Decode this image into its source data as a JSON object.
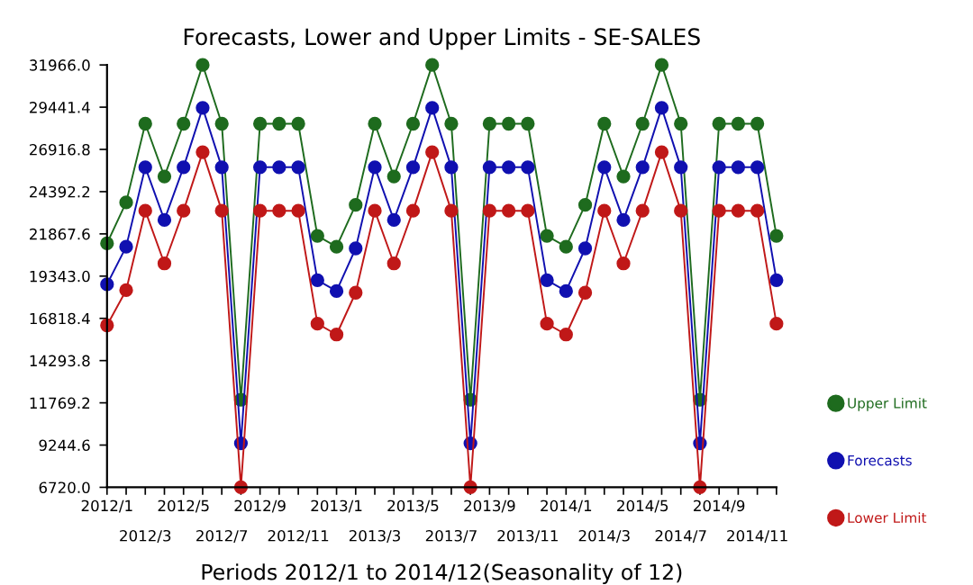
{
  "chart_data": {
    "type": "line",
    "title": "Forecasts, Lower and Upper Limits - SE-SALES",
    "xlabel": "Periods 2012/1 to 2014/12(Seasonality of 12)",
    "categories": [
      "2012/1",
      null,
      "2012/3",
      null,
      "2012/5",
      null,
      "2012/7",
      null,
      "2012/9",
      null,
      "2012/11",
      null,
      "2013/1",
      null,
      "2013/3",
      null,
      "2013/5",
      null,
      "2013/7",
      null,
      "2013/9",
      null,
      "2013/11",
      null,
      "2014/1",
      null,
      "2014/3",
      null,
      "2014/5",
      null,
      "2014/7",
      null,
      "2014/9",
      null,
      "2014/11",
      null
    ],
    "series": [
      {
        "name": "Upper Limit",
        "color": "#1e6b1e",
        "values": [
          21300,
          23750,
          28450,
          25300,
          28450,
          31966,
          28450,
          11950,
          28450,
          28450,
          28450,
          21750,
          21100,
          23600,
          28450,
          25300,
          28450,
          31966,
          28450,
          11950,
          28450,
          28450,
          28450,
          21750,
          21100,
          23600,
          28450,
          25300,
          28450,
          31966,
          28450,
          11950,
          28450,
          28450,
          28450,
          21750
        ]
      },
      {
        "name": "Forecasts",
        "color": "#1010b0",
        "values": [
          18850,
          21100,
          25850,
          22700,
          25850,
          29400,
          25850,
          9350,
          25850,
          25850,
          25850,
          19100,
          18450,
          21000,
          25850,
          22700,
          25850,
          29400,
          25850,
          9350,
          25850,
          25850,
          25850,
          19100,
          18450,
          21000,
          25850,
          22700,
          25850,
          29400,
          25850,
          9350,
          25850,
          25850,
          25850,
          19100
        ]
      },
      {
        "name": "Lower Limit",
        "color": "#c01818",
        "values": [
          16400,
          18500,
          23250,
          20100,
          23250,
          26750,
          23250,
          6720,
          23250,
          23250,
          23250,
          16500,
          15850,
          18350,
          23250,
          20100,
          23250,
          26750,
          23250,
          6720,
          23250,
          23250,
          23250,
          16500,
          15850,
          18350,
          23250,
          20100,
          23250,
          26750,
          23250,
          6720,
          23250,
          23250,
          23250,
          16500
        ]
      }
    ],
    "ylim": [
      6720,
      31966
    ],
    "yticks": [
      {
        "value": 6720,
        "label": "6720.0"
      },
      9244.6,
      11769.2,
      14293.8,
      16818.4,
      {
        "value": 19343,
        "label": "19343.0"
      },
      21867.6,
      24392.2,
      26916.8,
      29441.4,
      {
        "value": 31966,
        "label": "31966.0"
      }
    ],
    "grid": false,
    "legend": "bottom right",
    "marker": "circle",
    "line_style": "solid"
  }
}
